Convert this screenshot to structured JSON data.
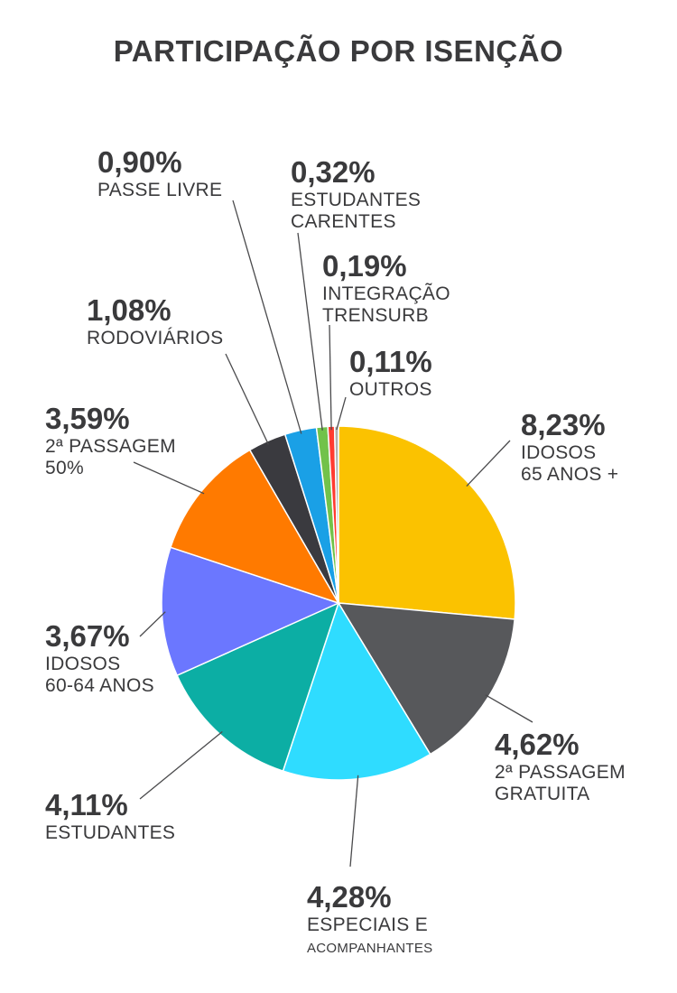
{
  "chart_data": {
    "type": "pie",
    "title": "PARTICIPAÇÃO POR ISENÇÃO",
    "slices": [
      {
        "value": 8.23,
        "pct_label": "8,23%",
        "label_lines": [
          "IDOSOS",
          "65 ANOS +"
        ],
        "color": "#fbc200"
      },
      {
        "value": 4.62,
        "pct_label": "4,62%",
        "label_lines": [
          "2ª PASSAGEM",
          "GRATUITA"
        ],
        "color": "#57585b"
      },
      {
        "value": 4.28,
        "pct_label": "4,28%",
        "label_lines": [
          "ESPECIAIS E",
          "ACOMPANHANTES"
        ],
        "color": "#2fdcff"
      },
      {
        "value": 4.11,
        "pct_label": "4,11%",
        "label_lines": [
          "ESTUDANTES"
        ],
        "color": "#0caea4"
      },
      {
        "value": 3.67,
        "pct_label": "3,67%",
        "label_lines": [
          "IDOSOS",
          "60-64 ANOS"
        ],
        "color": "#6b77ff"
      },
      {
        "value": 3.59,
        "pct_label": "3,59%",
        "label_lines": [
          "2ª PASSAGEM",
          "50%"
        ],
        "color": "#ff7a00"
      },
      {
        "value": 1.08,
        "pct_label": "1,08%",
        "label_lines": [
          "RODOVIÁRIOS"
        ],
        "color": "#3a3a3f"
      },
      {
        "value": 0.9,
        "pct_label": "0,90%",
        "label_lines": [
          "PASSE LIVRE"
        ],
        "color": "#1aa0e6"
      },
      {
        "value": 0.32,
        "pct_label": "0,32%",
        "label_lines": [
          "ESTUDANTES",
          "CARENTES"
        ],
        "color": "#72c24a"
      },
      {
        "value": 0.19,
        "pct_label": "0,19%",
        "label_lines": [
          "INTEGRAÇÃO",
          "TRENSURB"
        ],
        "color": "#ff3b30"
      },
      {
        "value": 0.11,
        "pct_label": "0,11%",
        "label_lines": [
          "OUTROS"
        ],
        "color": "#b0b0b0"
      }
    ]
  }
}
